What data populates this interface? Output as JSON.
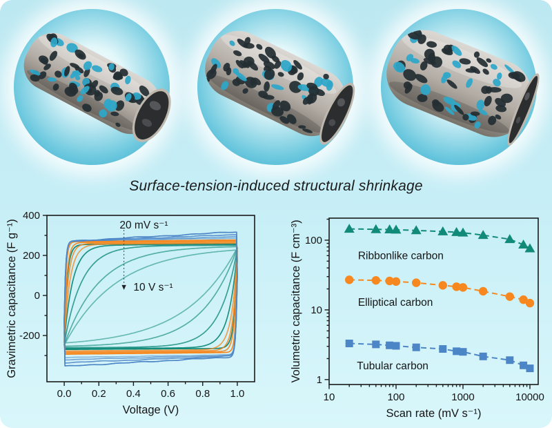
{
  "figure": {
    "title": "Surface-tension-induced structural shrinkage"
  },
  "renders": [
    {
      "name": "Tubular carbon",
      "shape": "tubular"
    },
    {
      "name": "Elliptical carbon",
      "shape": "elliptical"
    },
    {
      "name": "Ribbonlike carbon",
      "shape": "ribbonlike"
    }
  ],
  "colors": {
    "tubular_series": "#4d86c6",
    "elliptical_series": "#f6881f",
    "ribbonlike_series": "#128a7a",
    "axis": "#1a1a1a",
    "glow_edge": "#2ba4c7",
    "panel_top": "#bce8f1",
    "panel_bottom": "#d9f7fb",
    "tube_body": "#b3ada6",
    "hole_dark": "#232e33",
    "hole_sky": "#2ea7c9"
  },
  "chart_data": [
    {
      "type": "line",
      "subtype": "cyclic_voltammetry",
      "xlabel": "Voltage (V)",
      "ylabel": "Gravimetric capacitance (F g⁻¹)",
      "xlim": [
        -0.1,
        1.1
      ],
      "ylim": [
        -431,
        400
      ],
      "xticks": [
        0.0,
        0.2,
        0.4,
        0.6,
        0.8,
        1.0
      ],
      "xtick_labels": [
        "0.0",
        "0.2",
        "0.4",
        "0.6",
        "0.8",
        "1.0"
      ],
      "yticks": [
        400,
        200,
        0,
        -200
      ],
      "ytick_labels": [
        "400",
        "200",
        "0",
        "-200"
      ],
      "grid": false,
      "annotations": [
        {
          "id": "scan-high",
          "text": "20 mV s⁻¹",
          "x": 0.46,
          "y": 352,
          "anchor": "middle"
        },
        {
          "id": "scan-low",
          "text": "10 V s⁻¹",
          "x": 0.4,
          "y": 42,
          "anchor": "start"
        },
        {
          "id": "scan-arrow",
          "type": "arrow",
          "x": 0.345,
          "y_from": 328,
          "y_to": 52
        }
      ],
      "series": [
        {
          "name": "Ribbonlike carbon",
          "color": "#128a7a",
          "loops": [
            {
              "plateau": 262,
              "tau": 0.018,
              "slope": 5,
              "offset": -5,
              "opacity": 1.0,
              "noise": 0
            },
            {
              "plateau": 258,
              "tau": 0.05,
              "slope": 4,
              "offset": -5,
              "opacity": 0.95,
              "noise": 0
            },
            {
              "plateau": 254,
              "tau": 0.1,
              "slope": 3,
              "offset": -5,
              "opacity": 0.8,
              "noise": 0
            },
            {
              "plateau": 251,
              "tau": 0.2,
              "slope": 2,
              "offset": -5,
              "opacity": 0.65,
              "noise": 0
            },
            {
              "plateau": 249,
              "tau": 0.3,
              "slope": 2,
              "offset": -5,
              "opacity": 0.55,
              "noise": 0
            }
          ]
        },
        {
          "name": "Elliptical carbon",
          "color": "#f6881f",
          "loops": [
            {
              "plateau": 281,
              "tau": 0.01,
              "slope": 9,
              "offset": -8,
              "opacity": 1.0,
              "noise": 0
            },
            {
              "plateau": 276,
              "tau": 0.016,
              "slope": 8,
              "offset": -8,
              "opacity": 0.95,
              "noise": 0
            },
            {
              "plateau": 271,
              "tau": 0.024,
              "slope": 7,
              "offset": -8,
              "opacity": 0.88,
              "noise": 0
            },
            {
              "plateau": 266,
              "tau": 0.034,
              "slope": 6,
              "offset": -8,
              "opacity": 0.8,
              "noise": 0
            }
          ]
        },
        {
          "name": "Tubular carbon",
          "color": "#4d86c6",
          "loops": [
            {
              "plateau": 312,
              "tau": 0.008,
              "slope": 48,
              "offset": -18,
              "opacity": 1.0,
              "noise": 2.4
            },
            {
              "plateau": 303,
              "tau": 0.008,
              "slope": 34,
              "offset": -16,
              "opacity": 0.85,
              "noise": 2.0
            },
            {
              "plateau": 296,
              "tau": 0.008,
              "slope": 22,
              "offset": -14,
              "opacity": 0.7,
              "noise": 1.5
            },
            {
              "plateau": 291,
              "tau": 0.008,
              "slope": 14,
              "offset": -12,
              "opacity": 0.55,
              "noise": 1.2
            }
          ]
        }
      ]
    },
    {
      "type": "scatter",
      "xlabel": "Scan rate (mV s⁻¹)",
      "ylabel": "Volumetric capacitance (F cm⁻³)",
      "xscale": "log",
      "yscale": "log",
      "xlim": [
        10,
        13300
      ],
      "ylim": [
        0.85,
        207
      ],
      "xticks": [
        10,
        100,
        1000,
        10000
      ],
      "xtick_labels": [
        "10",
        "100",
        "1000",
        "10000"
      ],
      "yticks": [
        1,
        10,
        100
      ],
      "ytick_labels": [
        "1",
        "10",
        "100"
      ],
      "grid": false,
      "x": [
        20,
        50,
        80,
        100,
        200,
        500,
        800,
        1000,
        2000,
        5000,
        8000,
        10000
      ],
      "series": [
        {
          "name": "Ribbonlike carbon",
          "marker": "triangle",
          "color": "#128a7a",
          "values": [
            145,
            143,
            142,
            141,
            138,
            133,
            130,
            128,
            118,
            103,
            86,
            76
          ],
          "label": {
            "text": "Ribbonlike carbon",
            "x": 27,
            "y": 60
          }
        },
        {
          "name": "Elliptical carbon",
          "marker": "circle",
          "color": "#f6881f",
          "values": [
            27,
            26.5,
            26,
            25.5,
            24.5,
            22.5,
            21.5,
            21,
            18.5,
            15.5,
            14,
            12.5
          ],
          "label": {
            "text": "Elliptical carbon",
            "x": 27,
            "y": 12.8
          }
        },
        {
          "name": "Tubular carbon",
          "marker": "square",
          "color": "#4d86c6",
          "values": [
            3.3,
            3.2,
            3.1,
            3.05,
            2.9,
            2.75,
            2.55,
            2.5,
            2.15,
            1.9,
            1.6,
            1.45
          ],
          "label": {
            "text": "Tubular carbon",
            "x": 26,
            "y": 1.58
          }
        }
      ]
    }
  ]
}
